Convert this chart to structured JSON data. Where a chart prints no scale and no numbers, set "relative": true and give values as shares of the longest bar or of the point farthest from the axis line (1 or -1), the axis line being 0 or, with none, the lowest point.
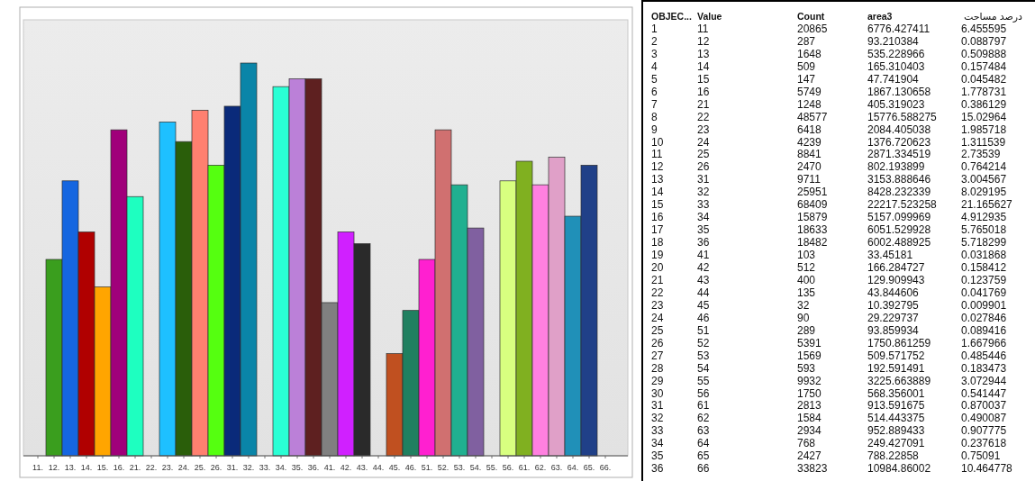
{
  "chart_data": [
    {
      "type": "bar",
      "relative": true,
      "categories": [
        "11.",
        "12.",
        "13.",
        "14.",
        "15.",
        "16.",
        "21.",
        "22.",
        "23.",
        "24.",
        "25.",
        "26.",
        "31.",
        "32.",
        "33.",
        "34.",
        "35.",
        "36.",
        "41.",
        "42.",
        "43.",
        "44.",
        "45.",
        "46.",
        "51.",
        "52.",
        "53.",
        "54.",
        "55.",
        "56.",
        "61.",
        "62.",
        "63.",
        "64.",
        "65.",
        "66."
      ],
      "values": [
        null,
        0.5,
        0.7,
        0.57,
        0.43,
        0.83,
        0.66,
        null,
        0.85,
        0.8,
        0.88,
        0.74,
        0.89,
        1,
        null,
        0.94,
        0.96,
        0.96,
        0.39,
        0.57,
        0.54,
        null,
        0.26,
        0.37,
        0.5,
        0.83,
        0.69,
        0.58,
        null,
        0.7,
        0.75,
        0.69,
        0.76,
        0.61,
        0.74,
        null
      ],
      "colors": [
        null,
        "#3a9e1e",
        "#1566e0",
        "#b00000",
        "#ffa500",
        "#a0007a",
        "#1effc0",
        null,
        "#1ec0ff",
        "#2a5e0a",
        "#ff8070",
        "#55ff10",
        "#0a2a7a",
        "#0a85a8",
        null,
        "#2affd5",
        "#bb80d8",
        "#5e2020",
        "#808080",
        "#d020ff",
        "#2a2a2a",
        null,
        "#c05020",
        "#208060",
        "#ff20d0",
        "#d07070",
        "#20b090",
        "#8060a0",
        null,
        "#d8ff80",
        "#80b020",
        "#ff80e0",
        "#e0a0c8",
        "#2090b8",
        "#204088",
        null
      ]
    },
    {
      "type": "other",
      "annotations": [
        "OBJEC...",
        "Value",
        "Count",
        "area3",
        "درصد مساحت",
        "1",
        "11",
        "20865",
        "6776.427411",
        "6.455595",
        "2",
        "12",
        "287",
        "93.210384",
        "0.088797",
        "3",
        "13",
        "1648",
        "535.228966",
        "0.509888",
        "4",
        "14",
        "509",
        "165.310403",
        "0.157484",
        "5",
        "15",
        "147",
        "47.741904",
        "0.045482",
        "6",
        "16",
        "5749",
        "1867.130658",
        "1.778731",
        "7",
        "21",
        "1248",
        "405.319023",
        "0.386129",
        "8",
        "22",
        "48577",
        "15776.588275",
        "15.02964",
        "9",
        "23",
        "6418",
        "2084.405038",
        "1.985718",
        "10",
        "24",
        "4239",
        "1376.720623",
        "1.311539",
        "11",
        "25",
        "8841",
        "2871.334519",
        "2.73539",
        "12",
        "26",
        "2470",
        "802.193899",
        "0.764214",
        "13",
        "31",
        "9711",
        "3153.888646",
        "3.004567",
        "14",
        "32",
        "25951",
        "8428.232339",
        "8.029195",
        "15",
        "33",
        "68409",
        "22217.523258",
        "21.165627",
        "16",
        "34",
        "15879",
        "5157.099969",
        "4.912935",
        "17",
        "35",
        "18633",
        "6051.529928",
        "5.765018",
        "18",
        "36",
        "18482",
        "6002.488925",
        "5.718299",
        "19",
        "41",
        "103",
        "33.45181",
        "0.031868",
        "20",
        "42",
        "512",
        "166.284727",
        "0.158412",
        "21",
        "43",
        "400",
        "129.909943",
        "0.123759",
        "22",
        "44",
        "135",
        "43.844606",
        "0.041769",
        "23",
        "45",
        "32",
        "10.392795",
        "0.009901",
        "24",
        "46",
        "90",
        "29.229737",
        "0.027846",
        "25",
        "51",
        "289",
        "93.859934",
        "0.089416",
        "26",
        "52",
        "5391",
        "1750.861259",
        "1.667966",
        "27",
        "53",
        "1569",
        "509.571752",
        "0.485446",
        "28",
        "54",
        "593",
        "192.591491",
        "0.183473",
        "29",
        "55",
        "9932",
        "3225.663889",
        "3.072944",
        "30",
        "56",
        "1750",
        "568.356001",
        "0.541447",
        "31",
        "61",
        "2813",
        "913.591675",
        "0.870037",
        "32",
        "62",
        "1584",
        "514.443375",
        "0.490087",
        "33",
        "63",
        "2934",
        "952.889433",
        "0.907775",
        "34",
        "64",
        "768",
        "249.427091",
        "0.237618",
        "35",
        "65",
        "2427",
        "788.22858",
        "0.75091",
        "36",
        "66",
        "33823",
        "10984.86002",
        "10.464778"
      ]
    }
  ]
}
